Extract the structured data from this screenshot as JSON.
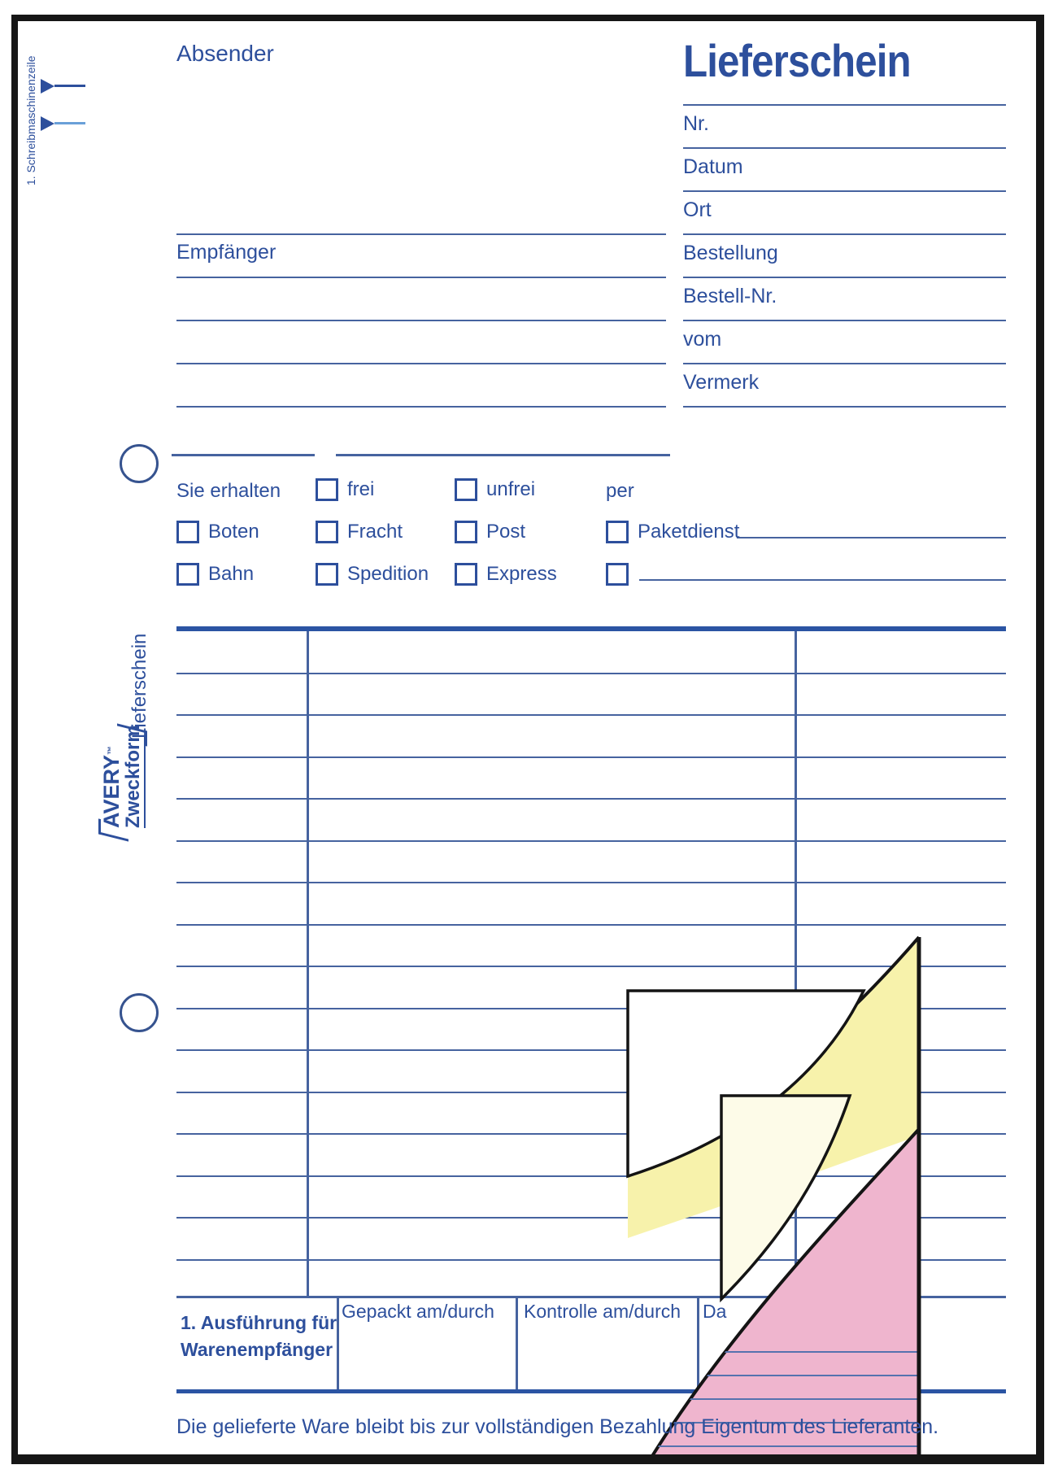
{
  "header": {
    "absender": "Absender",
    "title": "Lieferschein"
  },
  "side": {
    "typewriter_note": "1. Schreibmaschinenzeile",
    "doc_label": "Lieferschein",
    "brand_top": "AVERY",
    "brand_tm": "™",
    "brand_bottom": "Zweckform"
  },
  "recipient": {
    "label": "Empfänger"
  },
  "meta_labels": [
    "Nr.",
    "Datum",
    "Ort",
    "Bestellung",
    "Bestell-Nr.",
    "vom",
    "Vermerk"
  ],
  "shipping": {
    "intro": "Sie erhalten",
    "row1": [
      "frei",
      "unfrei"
    ],
    "per": "per",
    "row2": [
      "Boten",
      "Fracht",
      "Post",
      "Paketdienst"
    ],
    "row3": [
      "Bahn",
      "Spedition",
      "Express"
    ]
  },
  "footer": {
    "copy1": "1. Ausführung für",
    "copy2": "Warenempfänger",
    "packed": "Gepackt am/durch",
    "control": "Kontrolle am/durch",
    "partial": "Da",
    "note": "Die gelieferte Ware bleibt bis zur vollständigen Bezahlung Eigentum des Lieferanten."
  },
  "colors": {
    "ink": "#2d4f9c",
    "line": "#46639f",
    "line_light": "#6aa0d8",
    "thick": "#2b54a3",
    "frame": "#161616",
    "hole": "#36538f",
    "yellow": "#f7f2ab",
    "yellow_pale": "#fdfbe8",
    "pink": "#efb5ce",
    "pink_line": "#5672ae"
  }
}
